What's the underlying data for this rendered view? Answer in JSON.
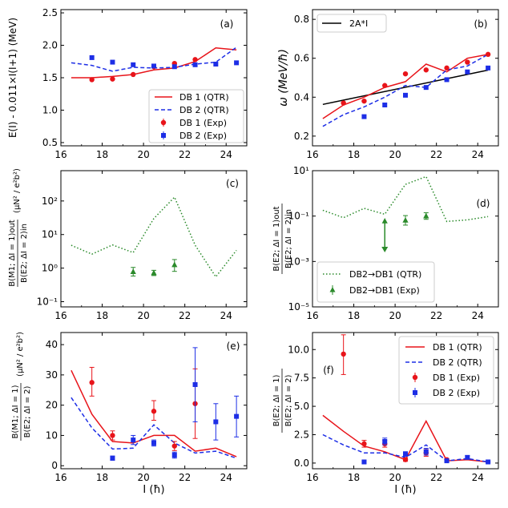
{
  "colors": {
    "red": "#e8141a",
    "blue": "#1d2ee6",
    "green": "#2a8a2a",
    "black": "#000000"
  },
  "chart_data": [
    {
      "id": "a",
      "type": "line",
      "panel_label": "(a)",
      "ylabel": "E(I) - 0.011×I(I+1) (MeV)",
      "xlabel": "",
      "xlim": [
        16,
        25
      ],
      "ylim": [
        0.45,
        2.55
      ],
      "yscale": "linear",
      "xticks": [
        16,
        18,
        20,
        22,
        24
      ],
      "yticks": [
        0.5,
        1.0,
        1.5,
        2.0,
        2.5
      ],
      "ytick_labels": [
        "0.5",
        "1.0",
        "1.5",
        "2.0",
        "2.5"
      ],
      "legend": {
        "position": "lower-right",
        "entries": [
          "DB 1 (QTR)",
          "DB 2 (QTR)",
          "DB 1 (Exp)",
          "DB 2 (Exp)"
        ]
      },
      "series": [
        {
          "name": "DB 1 (QTR)",
          "kind": "line",
          "style": "solid",
          "color": "red",
          "x": [
            16.5,
            17.5,
            18.5,
            19.5,
            20.5,
            21.5,
            22.5,
            23.5,
            24.5
          ],
          "y": [
            1.5,
            1.5,
            1.52,
            1.55,
            1.62,
            1.65,
            1.75,
            1.96,
            1.93
          ]
        },
        {
          "name": "DB 2 (QTR)",
          "kind": "line",
          "style": "dashed",
          "color": "blue",
          "x": [
            16.5,
            17.5,
            18.5,
            19.5,
            20.5,
            21.5,
            22.5,
            23.5,
            24.5
          ],
          "y": [
            1.73,
            1.69,
            1.6,
            1.66,
            1.65,
            1.66,
            1.71,
            1.74,
            1.97
          ]
        },
        {
          "name": "DB 1 (Exp)",
          "kind": "points",
          "marker": "circle",
          "color": "red",
          "x": [
            17.5,
            18.5,
            19.5,
            20.5,
            21.5,
            22.5
          ],
          "y": [
            1.47,
            1.48,
            1.55,
            1.67,
            1.72,
            1.78
          ]
        },
        {
          "name": "DB 2 (Exp)",
          "kind": "points",
          "marker": "square",
          "color": "blue",
          "x": [
            17.5,
            18.5,
            19.5,
            20.5,
            21.5,
            22.5,
            23.5,
            24.5
          ],
          "y": [
            1.81,
            1.74,
            1.7,
            1.68,
            1.67,
            1.7,
            1.71,
            1.73
          ]
        }
      ]
    },
    {
      "id": "b",
      "type": "line",
      "panel_label": "(b)",
      "ylabel": "ω (MeV/ħ)",
      "xlabel": "",
      "xlim": [
        16,
        25
      ],
      "ylim": [
        0.15,
        0.85
      ],
      "yscale": "linear",
      "xticks": [
        16,
        18,
        20,
        22,
        24
      ],
      "yticks": [
        0.2,
        0.4,
        0.6,
        0.8
      ],
      "ytick_labels": [
        "0.2",
        "0.4",
        "0.6",
        "0.8"
      ],
      "legend": {
        "position": "upper-left",
        "entries": [
          "2A*I"
        ]
      },
      "series": [
        {
          "name": "2A*I",
          "kind": "line",
          "style": "solid",
          "color": "black",
          "x": [
            16.5,
            24.5
          ],
          "y": [
            0.363,
            0.539
          ]
        },
        {
          "name": "DB 1 (QTR)",
          "kind": "line",
          "style": "solid",
          "color": "red",
          "x": [
            16.5,
            17.5,
            18.5,
            19.5,
            20.5,
            21.5,
            22.5,
            23.5,
            24.5
          ],
          "y": [
            0.29,
            0.36,
            0.4,
            0.45,
            0.48,
            0.57,
            0.53,
            0.6,
            0.62
          ]
        },
        {
          "name": "DB 2 (QTR)",
          "kind": "line",
          "style": "dashed",
          "color": "blue",
          "x": [
            16.5,
            17.5,
            18.5,
            19.5,
            20.5,
            21.5,
            22.5,
            23.5,
            24.5
          ],
          "y": [
            0.25,
            0.31,
            0.35,
            0.4,
            0.46,
            0.45,
            0.54,
            0.56,
            0.62
          ]
        },
        {
          "name": "DB 1 (Exp)",
          "kind": "points",
          "marker": "circle",
          "color": "red",
          "x": [
            17.5,
            18.5,
            19.5,
            20.5,
            21.5,
            22.5,
            23.5,
            24.5
          ],
          "y": [
            0.37,
            0.38,
            0.46,
            0.52,
            0.54,
            0.55,
            0.58,
            0.62
          ]
        },
        {
          "name": "DB 2 (Exp)",
          "kind": "points",
          "marker": "square",
          "color": "blue",
          "x": [
            18.5,
            19.5,
            20.5,
            21.5,
            22.5,
            23.5,
            24.5
          ],
          "y": [
            0.3,
            0.36,
            0.41,
            0.45,
            0.49,
            0.53,
            0.55
          ]
        }
      ]
    },
    {
      "id": "c",
      "type": "line",
      "panel_label": "(c)",
      "ylabel": "B(M1;ΔI=1)out/B(E2;ΔI=2)in (μN²/e²b²)",
      "xlabel": "",
      "ylabel_lines": [
        "B(M1; ΔI = 1)out",
        "B(E2; ΔI = 2)in",
        "(μN² / e²b²)"
      ],
      "xlim": [
        16,
        25
      ],
      "ylim": [
        0.07,
        800
      ],
      "yscale": "log",
      "xticks": [
        16,
        18,
        20,
        22,
        24
      ],
      "yticks": [
        0.1,
        1,
        10,
        100
      ],
      "ytick_labels": [
        "10⁻¹",
        "10⁰",
        "10¹",
        "10²"
      ],
      "legend": null,
      "series": [
        {
          "name": "DB2→DB1 (QTR)",
          "kind": "line",
          "style": "dotted",
          "color": "green",
          "x": [
            16.5,
            17.5,
            18.5,
            19.5,
            20.5,
            21.5,
            22.5,
            23.5,
            24.5
          ],
          "y": [
            4.8,
            2.6,
            4.9,
            2.9,
            30,
            130,
            4.8,
            0.55,
            3.4
          ]
        },
        {
          "name": "DB2→DB1 (Exp)",
          "kind": "points",
          "marker": "triangle",
          "color": "green",
          "x": [
            19.5,
            20.5,
            21.5
          ],
          "y": [
            0.78,
            0.72,
            1.25
          ],
          "err_low": [
            0.58,
            0.6,
            0.8
          ],
          "err_high": [
            1.05,
            0.86,
            1.8
          ]
        }
      ]
    },
    {
      "id": "d",
      "type": "line",
      "panel_label": "(d)",
      "ylabel": "B(E2;ΔI=1)out/B(E2;ΔI=2)in",
      "xlabel": "",
      "ylabel_lines": [
        "B(E2; ΔI = 1)out",
        "B(E2; ΔI = 2)in"
      ],
      "xlim": [
        16,
        25
      ],
      "ylim": [
        1e-05,
        10
      ],
      "yscale": "log",
      "xticks": [
        16,
        18,
        20,
        22,
        24
      ],
      "yticks": [
        1e-05,
        0.001,
        0.1,
        10
      ],
      "ytick_labels": [
        "10⁻⁵",
        "10⁻³",
        "10⁻¹",
        "10¹"
      ],
      "legend": {
        "position": "lower-left",
        "entries": [
          "DB2→DB1 (QTR)",
          "DB2→DB1 (Exp)"
        ]
      },
      "series": [
        {
          "name": "DB2→DB1 (QTR)",
          "kind": "line",
          "style": "dotted",
          "color": "green",
          "x": [
            16.5,
            17.5,
            18.5,
            19.5,
            20.5,
            21.5,
            22.5,
            23.5,
            24.5
          ],
          "y": [
            0.18,
            0.085,
            0.22,
            0.12,
            2.5,
            5.5,
            0.058,
            0.068,
            0.095
          ]
        },
        {
          "name": "DB2→DB1 (Exp)",
          "kind": "points",
          "marker": "triangle",
          "color": "green",
          "x": [
            20.5,
            21.5
          ],
          "y": [
            0.065,
            0.1
          ],
          "err_low": [
            0.04,
            0.072
          ],
          "err_high": [
            0.105,
            0.14
          ]
        },
        {
          "name": "DB2→DB1 upper limit",
          "kind": "upper-limit",
          "color": "green",
          "x": 19.5,
          "y_from": 0.06,
          "y_to": 0.0025
        }
      ]
    },
    {
      "id": "e",
      "type": "line",
      "panel_label": "(e)",
      "ylabel": "B(M1;ΔI=1)/B(E2;ΔI=2) (μN²/e²b²)",
      "xlabel": "I (ħ)",
      "ylabel_lines": [
        "B(M1; ΔI = 1)",
        "B(E2; ΔI = 2)",
        "(μN² / e²b²)"
      ],
      "xlim": [
        16,
        25
      ],
      "ylim": [
        -1,
        44
      ],
      "yscale": "linear",
      "xticks": [
        16,
        18,
        20,
        22,
        24
      ],
      "yticks": [
        0,
        10,
        20,
        30,
        40
      ],
      "ytick_labels": [
        "0",
        "10",
        "20",
        "30",
        "40"
      ],
      "legend": null,
      "series": [
        {
          "name": "DB 1 (QTR)",
          "kind": "line",
          "style": "solid",
          "color": "red",
          "x": [
            16.5,
            17.5,
            18.5,
            19.5,
            20.5,
            21.5,
            22.5,
            23.5,
            24.5
          ],
          "y": [
            31.5,
            17.0,
            8.0,
            7.5,
            10.0,
            10.0,
            4.8,
            5.8,
            3.0
          ]
        },
        {
          "name": "DB 2 (QTR)",
          "kind": "line",
          "style": "dashed",
          "color": "blue",
          "x": [
            16.5,
            17.5,
            18.5,
            19.5,
            20.5,
            21.5,
            22.5,
            23.5,
            24.5
          ],
          "y": [
            22.5,
            12.5,
            5.5,
            5.8,
            13.5,
            7.5,
            4.2,
            4.8,
            2.5
          ]
        },
        {
          "name": "DB 1 (Exp)",
          "kind": "points",
          "marker": "circle",
          "color": "red",
          "x": [
            17.5,
            18.5,
            20.5,
            21.5,
            22.5
          ],
          "y": [
            27.5,
            10.0,
            18.0,
            6.5,
            20.5
          ],
          "err_low": [
            23.0,
            8.5,
            15.0,
            5.0,
            9.0
          ],
          "err_high": [
            32.5,
            11.5,
            21.5,
            8.0,
            32.0
          ]
        },
        {
          "name": "DB 2 (Exp)",
          "kind": "points",
          "marker": "square",
          "color": "blue",
          "x": [
            18.5,
            19.5,
            20.5,
            21.5,
            22.5,
            23.5,
            24.5
          ],
          "y": [
            2.5,
            8.5,
            7.5,
            3.5,
            26.8,
            14.5,
            16.3
          ],
          "err_low": [
            1.8,
            7.0,
            6.5,
            2.5,
            14.5,
            8.5,
            9.5
          ],
          "err_high": [
            3.2,
            10.0,
            8.5,
            4.5,
            39.0,
            20.5,
            23.0
          ]
        }
      ]
    },
    {
      "id": "f",
      "type": "line",
      "panel_label": "(f)",
      "ylabel": "B(E2;ΔI=1)/B(E2;ΔI=2)",
      "xlabel": "I (ħ)",
      "ylabel_lines": [
        "B(E2; ΔI = 1)",
        "B(E2; ΔI = 2)"
      ],
      "xlim": [
        16,
        25
      ],
      "ylim": [
        -0.5,
        11.5
      ],
      "yscale": "linear",
      "xticks": [
        16,
        18,
        20,
        22,
        24
      ],
      "yticks": [
        0.0,
        2.5,
        5.0,
        7.5,
        10.0
      ],
      "ytick_labels": [
        "0.0",
        "2.5",
        "5.0",
        "7.5",
        "10.0"
      ],
      "legend": {
        "position": "upper-right",
        "entries": [
          "DB 1 (QTR)",
          "DB 2 (QTR)",
          "DB 1 (Exp)",
          "DB 2 (Exp)"
        ]
      },
      "series": [
        {
          "name": "DB 1 (QTR)",
          "kind": "line",
          "style": "solid",
          "color": "red",
          "x": [
            16.5,
            17.5,
            18.5,
            19.5,
            20.5,
            21.5,
            22.5,
            23.5,
            24.5
          ],
          "y": [
            4.2,
            2.8,
            1.5,
            1.0,
            0.3,
            3.7,
            0.2,
            0.3,
            0.1
          ]
        },
        {
          "name": "DB 2 (QTR)",
          "kind": "line",
          "style": "dashed",
          "color": "blue",
          "x": [
            16.5,
            17.5,
            18.5,
            19.5,
            20.5,
            21.5,
            22.5,
            23.5,
            24.5
          ],
          "y": [
            2.5,
            1.6,
            0.9,
            0.9,
            0.5,
            1.6,
            0.2,
            0.4,
            0.1
          ]
        },
        {
          "name": "DB 1 (Exp)",
          "kind": "points",
          "marker": "circle",
          "color": "red",
          "x": [
            17.5,
            18.5,
            19.5,
            20.5,
            21.5,
            22.5
          ],
          "y": [
            9.6,
            1.7,
            1.7,
            0.3,
            0.9,
            0.3
          ],
          "err_low": [
            7.8,
            1.4,
            1.4,
            0.15,
            0.6,
            0.2
          ],
          "err_high": [
            11.3,
            2.0,
            2.0,
            0.45,
            1.2,
            0.4
          ]
        },
        {
          "name": "DB 2 (Exp)",
          "kind": "points",
          "marker": "square",
          "color": "blue",
          "x": [
            18.5,
            19.5,
            20.5,
            21.5,
            22.5,
            23.5,
            24.5
          ],
          "y": [
            0.1,
            1.9,
            0.8,
            1.0,
            0.2,
            0.5,
            0.1
          ],
          "err_low": [
            0.0,
            1.6,
            0.6,
            0.7,
            0.1,
            0.35,
            0.05
          ],
          "err_high": [
            0.2,
            2.2,
            1.0,
            1.3,
            0.3,
            0.65,
            0.15
          ]
        }
      ]
    }
  ]
}
